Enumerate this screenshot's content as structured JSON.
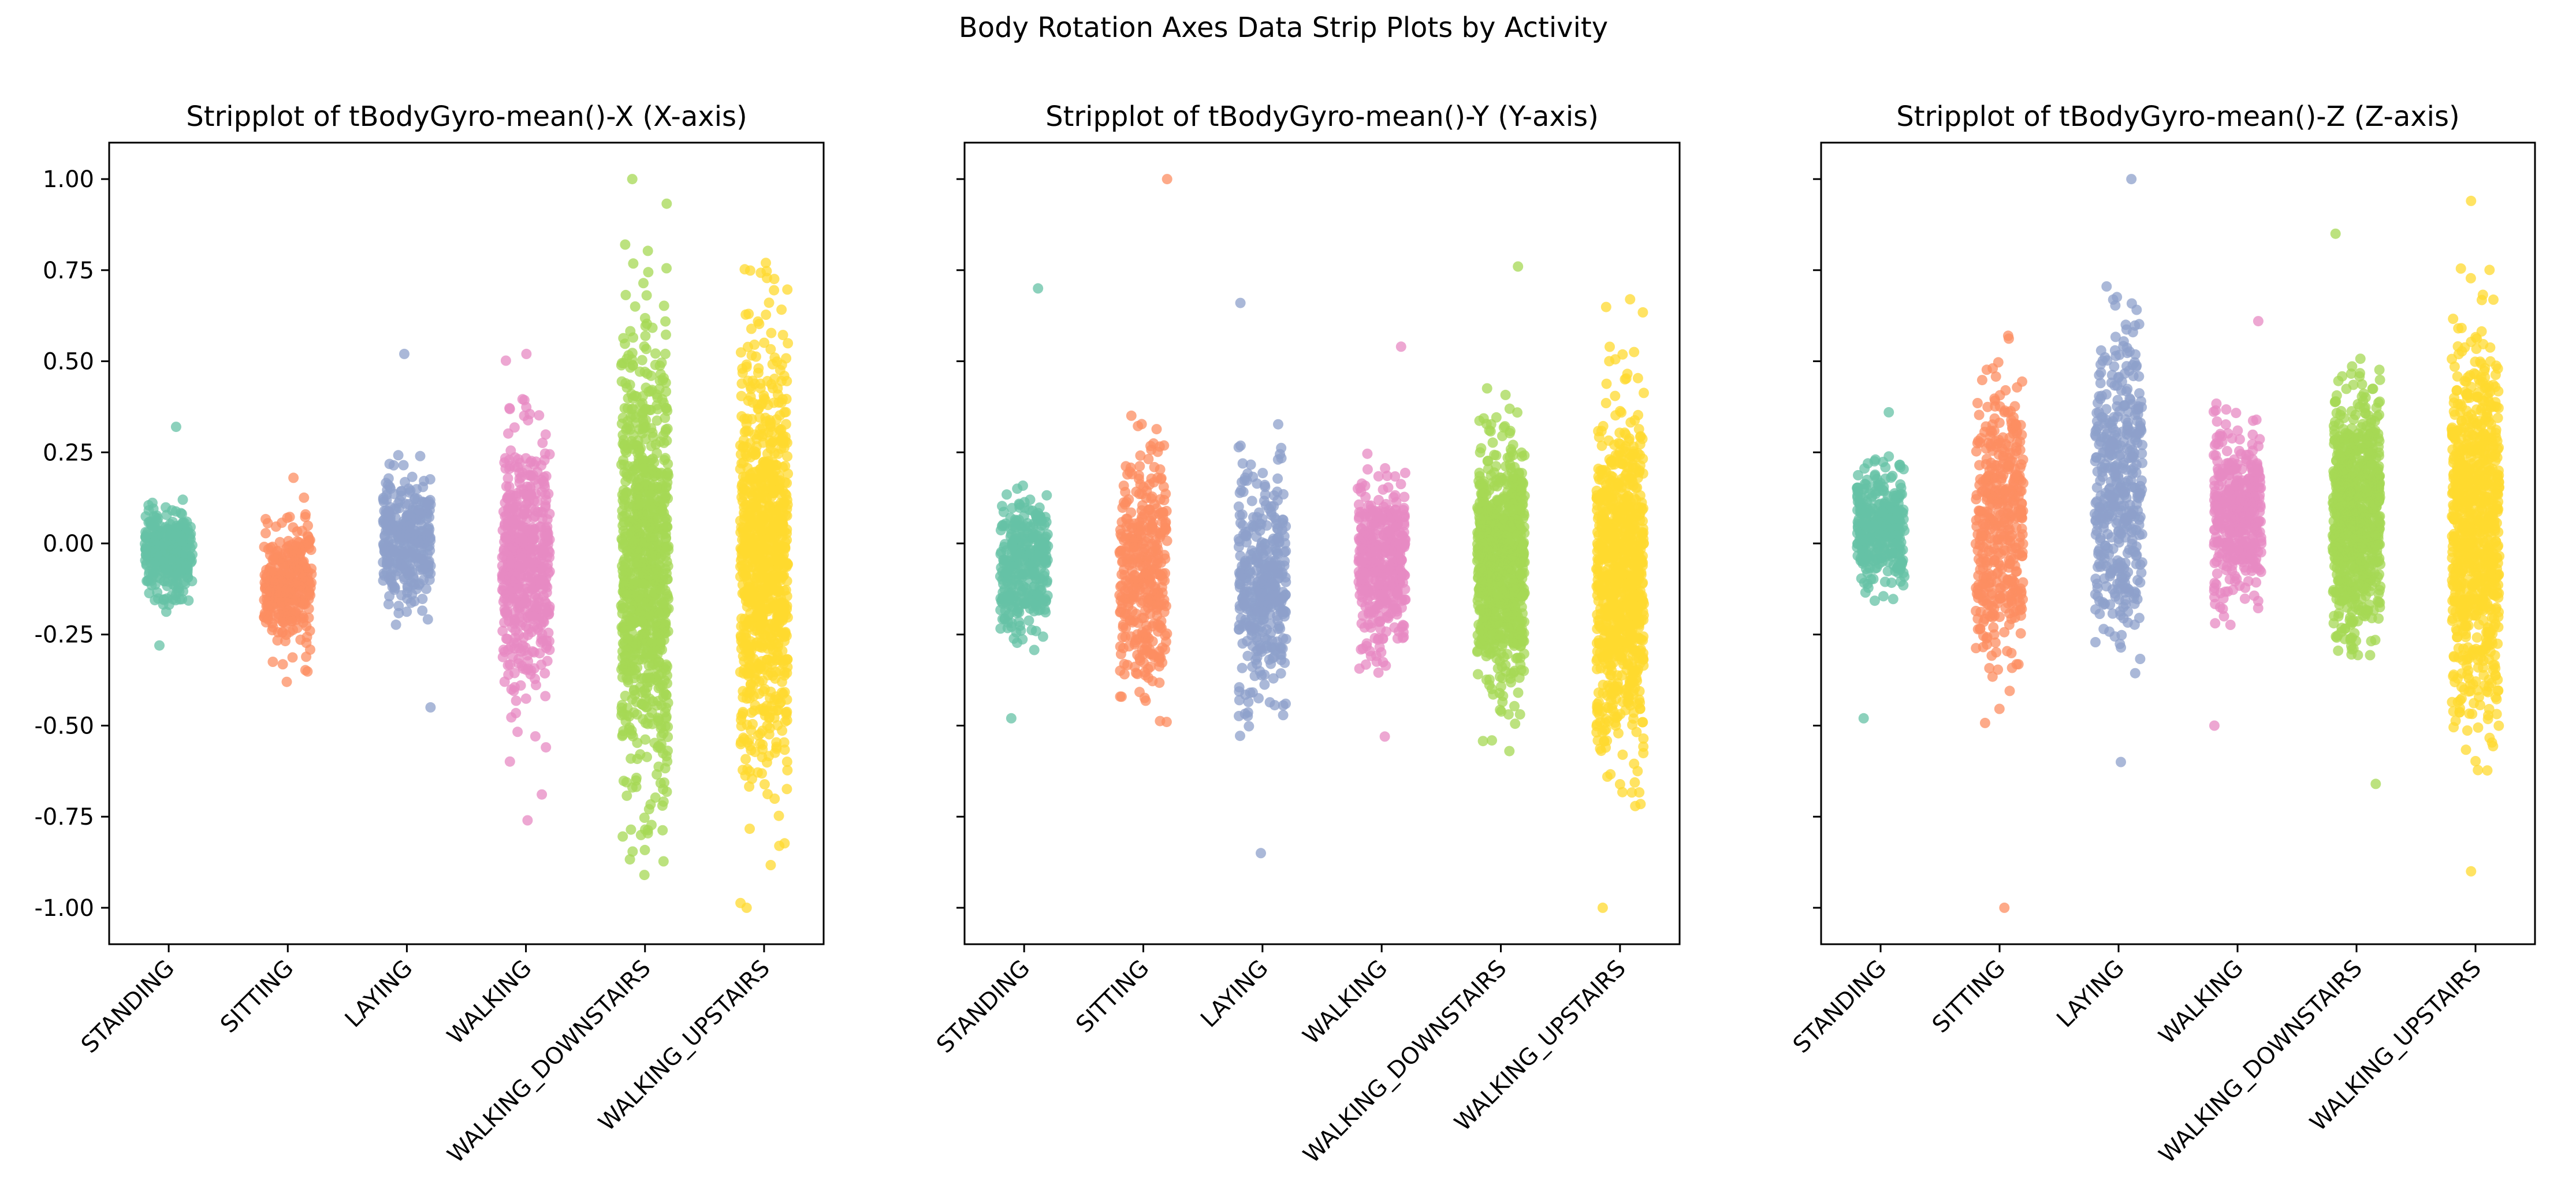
{
  "figure": {
    "suptitle": "Body Rotation Axes Data Strip Plots by Activity"
  },
  "chart_data": [
    {
      "type": "scatter",
      "subtype": "stripplot",
      "title": "Stripplot of tBodyGyro-mean()-X (X-axis)",
      "xlabel": "",
      "ylabel": "",
      "categories": [
        "STANDING",
        "SITTING",
        "LAYING",
        "WALKING",
        "WALKING_DOWNSTAIRS",
        "WALKING_UPSTAIRS"
      ],
      "ylim": [
        -1.1,
        1.1
      ],
      "yticks": [
        "1.00",
        "0.75",
        "0.50",
        "0.25",
        "0.00",
        "-0.25",
        "-0.50",
        "-0.75",
        "-1.00"
      ],
      "show_yticks": true,
      "series": [
        {
          "category": "STANDING",
          "color": "#66c2a5",
          "center": -0.03,
          "spread": 0.06,
          "min": -0.28,
          "max": 0.32,
          "count": 320
        },
        {
          "category": "SITTING",
          "color": "#fc8d62",
          "center": -0.12,
          "spread": 0.08,
          "min": -0.38,
          "max": 0.18,
          "count": 320
        },
        {
          "category": "LAYING",
          "color": "#8da0cb",
          "center": 0.0,
          "spread": 0.09,
          "min": -0.45,
          "max": 0.52,
          "count": 320
        },
        {
          "category": "WALKING",
          "color": "#e78ac3",
          "center": -0.05,
          "spread": 0.17,
          "min": -0.76,
          "max": 0.52,
          "count": 520
        },
        {
          "category": "WALKING_DOWNSTAIRS",
          "color": "#a6d854",
          "center": -0.07,
          "spread": 0.3,
          "min": -0.91,
          "max": 1.0,
          "count": 900
        },
        {
          "category": "WALKING_UPSTAIRS",
          "color": "#ffd92f",
          "center": -0.04,
          "spread": 0.28,
          "min": -1.0,
          "max": 0.77,
          "count": 900
        }
      ]
    },
    {
      "type": "scatter",
      "subtype": "stripplot",
      "title": "Stripplot of tBodyGyro-mean()-Y (Y-axis)",
      "xlabel": "",
      "ylabel": "",
      "categories": [
        "STANDING",
        "SITTING",
        "LAYING",
        "WALKING",
        "WALKING_DOWNSTAIRS",
        "WALKING_UPSTAIRS"
      ],
      "ylim": [
        -1.1,
        1.1
      ],
      "yticks": [
        "1.00",
        "0.75",
        "0.50",
        "0.25",
        "0.00",
        "-0.25",
        "-0.50",
        "-0.75",
        "-1.00"
      ],
      "show_yticks": false,
      "series": [
        {
          "category": "STANDING",
          "color": "#66c2a5",
          "center": -0.06,
          "spread": 0.09,
          "min": -0.48,
          "max": 0.7,
          "count": 320
        },
        {
          "category": "SITTING",
          "color": "#fc8d62",
          "center": -0.08,
          "spread": 0.15,
          "min": -0.49,
          "max": 1.0,
          "count": 380
        },
        {
          "category": "LAYING",
          "color": "#8da0cb",
          "center": -0.12,
          "spread": 0.15,
          "min": -0.85,
          "max": 0.66,
          "count": 380
        },
        {
          "category": "WALKING",
          "color": "#e78ac3",
          "center": -0.06,
          "spread": 0.11,
          "min": -0.53,
          "max": 0.54,
          "count": 420
        },
        {
          "category": "WALKING_DOWNSTAIRS",
          "color": "#a6d854",
          "center": -0.06,
          "spread": 0.16,
          "min": -0.57,
          "max": 0.76,
          "count": 800
        },
        {
          "category": "WALKING_UPSTAIRS",
          "color": "#ffd92f",
          "center": -0.1,
          "spread": 0.22,
          "min": -1.0,
          "max": 0.67,
          "count": 850
        }
      ]
    },
    {
      "type": "scatter",
      "subtype": "stripplot",
      "title": "Stripplot of tBodyGyro-mean()-Z (Z-axis)",
      "xlabel": "",
      "ylabel": "",
      "categories": [
        "STANDING",
        "SITTING",
        "LAYING",
        "WALKING",
        "WALKING_DOWNSTAIRS",
        "WALKING_UPSTAIRS"
      ],
      "ylim": [
        -1.1,
        1.1
      ],
      "yticks": [
        "1.00",
        "0.75",
        "0.50",
        "0.25",
        "0.00",
        "-0.25",
        "-0.50",
        "-0.75",
        "-1.00"
      ],
      "show_yticks": false,
      "series": [
        {
          "category": "STANDING",
          "color": "#66c2a5",
          "center": 0.04,
          "spread": 0.08,
          "min": -0.48,
          "max": 0.36,
          "count": 320
        },
        {
          "category": "SITTING",
          "color": "#fc8d62",
          "center": 0.06,
          "spread": 0.18,
          "min": -1.0,
          "max": 0.57,
          "count": 420
        },
        {
          "category": "LAYING",
          "color": "#8da0cb",
          "center": 0.16,
          "spread": 0.19,
          "min": -0.6,
          "max": 1.0,
          "count": 420
        },
        {
          "category": "WALKING",
          "color": "#e78ac3",
          "center": 0.08,
          "spread": 0.11,
          "min": -0.5,
          "max": 0.61,
          "count": 420
        },
        {
          "category": "WALKING_DOWNSTAIRS",
          "color": "#a6d854",
          "center": 0.08,
          "spread": 0.16,
          "min": -0.66,
          "max": 0.85,
          "count": 800
        },
        {
          "category": "WALKING_UPSTAIRS",
          "color": "#ffd92f",
          "center": 0.04,
          "spread": 0.25,
          "min": -0.9,
          "max": 0.94,
          "count": 850
        }
      ]
    }
  ]
}
